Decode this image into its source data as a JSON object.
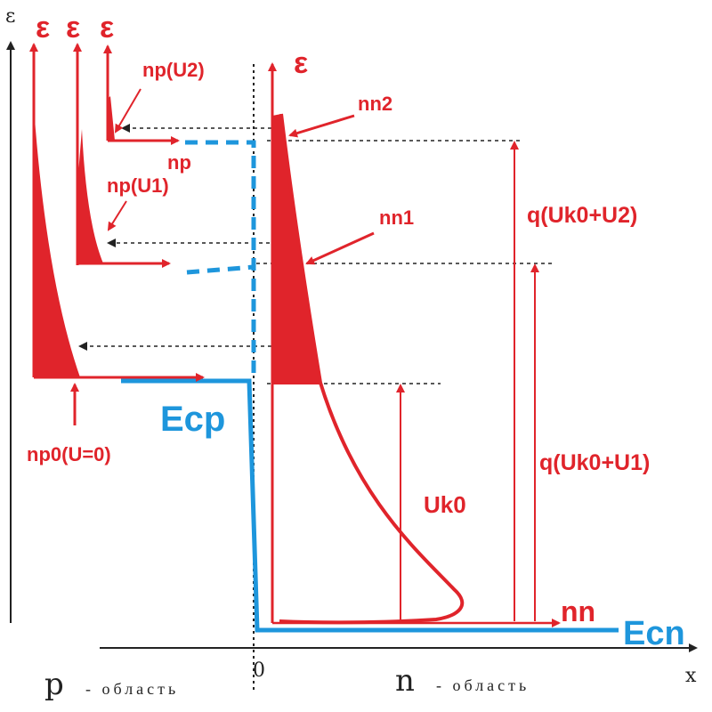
{
  "colors": {
    "red": "#e0242b",
    "blue": "#1e96dc",
    "black": "#222222"
  },
  "axes": {
    "y_label": "ε",
    "x_label": "x",
    "origin_label": "0"
  },
  "epsilon_labels": [
    "ε",
    "ε",
    "ε",
    "ε"
  ],
  "labels": {
    "np_u2": "nр(U2)",
    "np": "nр",
    "np_u1": "nр(U1)",
    "nn2": "nn2",
    "nn1": "nn1",
    "q_u2": "q(Uk0+U2)",
    "q_u1": "q(Uk0+U1)",
    "ecp": "Eср",
    "ecn": "Eсn",
    "np0": "nр0(U=0)",
    "uk0": "Uk0",
    "nn": "nn"
  },
  "regions": {
    "p_letter": "p",
    "p_word": "- область",
    "n_letter": "n",
    "n_word": "- область"
  }
}
